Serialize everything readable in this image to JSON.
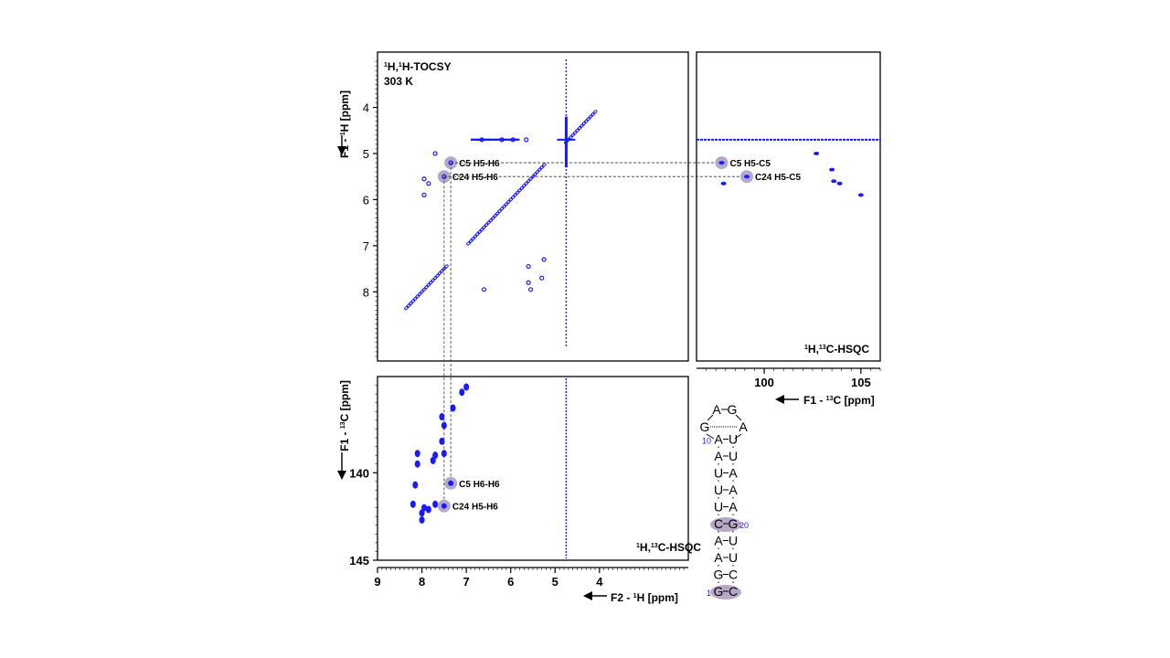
{
  "chart_data": [
    {
      "type": "scatter",
      "panel": "tocsy",
      "title": "1H,1H-TOCSY",
      "title_sup": [
        "1",
        "1"
      ],
      "subtitle": "303 K",
      "ylabel": "F1 - 1H [ppm]",
      "x_axis": "F2 - 1H [ppm]",
      "xlim": [
        9.0,
        2.0
      ],
      "ylim": [
        2.8,
        9.5
      ],
      "yticks": [
        4,
        5,
        6,
        7,
        8
      ],
      "highlighted": [
        {
          "label": "C5 H5-H6",
          "x": 7.35,
          "y": 5.2
        },
        {
          "label": "C24 H5-H6",
          "x": 7.5,
          "y": 5.5
        }
      ],
      "cross_peaks": [
        {
          "x": 7.95,
          "y": 5.55
        },
        {
          "x": 7.85,
          "y": 5.65
        },
        {
          "x": 7.95,
          "y": 5.9
        },
        {
          "x": 7.7,
          "y": 5.0
        },
        {
          "x": 6.6,
          "y": 7.95
        },
        {
          "x": 5.6,
          "y": 7.8
        },
        {
          "x": 5.55,
          "y": 7.95
        },
        {
          "x": 5.3,
          "y": 7.7
        },
        {
          "x": 5.6,
          "y": 7.45
        },
        {
          "x": 5.25,
          "y": 7.3
        },
        {
          "x": 5.95,
          "y": 4.7
        },
        {
          "x": 6.2,
          "y": 4.7
        },
        {
          "x": 6.65,
          "y": 4.7
        },
        {
          "x": 5.65,
          "y": 4.7
        }
      ]
    },
    {
      "type": "scatter",
      "panel": "hsqc_top",
      "title": "1H,13C-HSQC",
      "xlabel": "F1 - 13C [ppm]",
      "xlim": [
        96.5,
        106.0
      ],
      "xticks": [
        100,
        105
      ],
      "highlighted": [
        {
          "label": "C5 H5-C5",
          "x": 97.8,
          "y": 5.2
        },
        {
          "label": "C24 H5-C5",
          "x": 99.1,
          "y": 5.5
        }
      ],
      "peaks": [
        {
          "x": 97.9,
          "y": 5.65
        },
        {
          "x": 102.7,
          "y": 5.0
        },
        {
          "x": 103.5,
          "y": 5.35
        },
        {
          "x": 103.6,
          "y": 5.6
        },
        {
          "x": 103.9,
          "y": 5.65
        },
        {
          "x": 105.0,
          "y": 5.9
        }
      ]
    },
    {
      "type": "scatter",
      "panel": "hsqc_bottom",
      "title": "1H,13C-HSQC",
      "ylabel": "F1 - 13C [ppm]",
      "xlabel": "F2 - 1H [ppm]",
      "xlim": [
        9.0,
        2.0
      ],
      "xticks": [
        9,
        8,
        7,
        6,
        5,
        4
      ],
      "ylim": [
        134.5,
        145.0
      ],
      "yticks": [
        140,
        145
      ],
      "highlighted": [
        {
          "label": "C5 H6-H6",
          "x": 7.35,
          "y": 140.6
        },
        {
          "label": "C24 H5-H6",
          "x": 7.5,
          "y": 141.9
        }
      ],
      "peaks": [
        {
          "x": 7.0,
          "y": 135.1
        },
        {
          "x": 7.1,
          "y": 135.4
        },
        {
          "x": 7.3,
          "y": 136.3
        },
        {
          "x": 7.55,
          "y": 136.8
        },
        {
          "x": 7.5,
          "y": 137.3
        },
        {
          "x": 7.55,
          "y": 138.2
        },
        {
          "x": 7.5,
          "y": 138.9
        },
        {
          "x": 7.7,
          "y": 139.0
        },
        {
          "x": 7.75,
          "y": 139.3
        },
        {
          "x": 8.1,
          "y": 138.9
        },
        {
          "x": 8.1,
          "y": 139.5
        },
        {
          "x": 8.15,
          "y": 140.7
        },
        {
          "x": 8.2,
          "y": 141.8
        },
        {
          "x": 7.7,
          "y": 141.8
        },
        {
          "x": 7.95,
          "y": 142.0
        },
        {
          "x": 8.0,
          "y": 142.3
        },
        {
          "x": 7.85,
          "y": 142.1
        },
        {
          "x": 8.0,
          "y": 142.7
        }
      ]
    }
  ],
  "rna": {
    "pairs": [
      [
        "1G",
        "C"
      ],
      [
        "G",
        "C"
      ],
      [
        "A",
        "U"
      ],
      [
        "A",
        "U"
      ],
      [
        "C",
        "G20"
      ],
      [
        "U",
        "A"
      ],
      [
        "U",
        "A"
      ],
      [
        "U",
        "A"
      ],
      [
        "A",
        "U"
      ],
      [
        "10A",
        "U"
      ]
    ],
    "loop": {
      "left": "G",
      "right": "A",
      "top_left": "A",
      "top_right": "G"
    }
  },
  "colors": {
    "spectrum": "#1a1aff",
    "highlight": "#b8a8c8",
    "axis": "#000000"
  }
}
